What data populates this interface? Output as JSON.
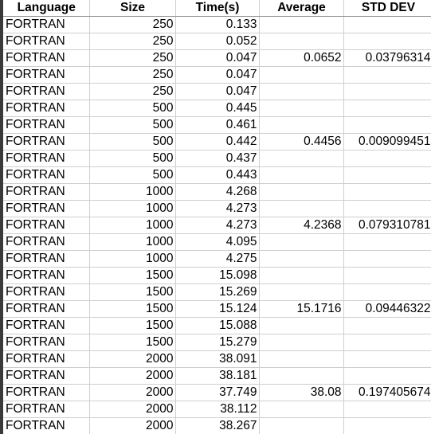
{
  "columns": [
    "Language",
    "Size",
    "Time(s)",
    "Average",
    "STD DEV"
  ],
  "rows": [
    {
      "language": "FORTRAN",
      "size": "250",
      "time": "0.133",
      "average": "",
      "std": ""
    },
    {
      "language": "FORTRAN",
      "size": "250",
      "time": "0.052",
      "average": "",
      "std": ""
    },
    {
      "language": "FORTRAN",
      "size": "250",
      "time": "0.047",
      "average": "0.0652",
      "std": "0.03796314"
    },
    {
      "language": "FORTRAN",
      "size": "250",
      "time": "0.047",
      "average": "",
      "std": ""
    },
    {
      "language": "FORTRAN",
      "size": "250",
      "time": "0.047",
      "average": "",
      "std": ""
    },
    {
      "language": "FORTRAN",
      "size": "500",
      "time": "0.445",
      "average": "",
      "std": ""
    },
    {
      "language": "FORTRAN",
      "size": "500",
      "time": "0.461",
      "average": "",
      "std": ""
    },
    {
      "language": "FORTRAN",
      "size": "500",
      "time": "0.442",
      "average": "0.4456",
      "std": "0.009099451"
    },
    {
      "language": "FORTRAN",
      "size": "500",
      "time": "0.437",
      "average": "",
      "std": ""
    },
    {
      "language": "FORTRAN",
      "size": "500",
      "time": "0.443",
      "average": "",
      "std": ""
    },
    {
      "language": "FORTRAN",
      "size": "1000",
      "time": "4.268",
      "average": "",
      "std": ""
    },
    {
      "language": "FORTRAN",
      "size": "1000",
      "time": "4.273",
      "average": "",
      "std": ""
    },
    {
      "language": "FORTRAN",
      "size": "1000",
      "time": "4.273",
      "average": "4.2368",
      "std": "0.079310781"
    },
    {
      "language": "FORTRAN",
      "size": "1000",
      "time": "4.095",
      "average": "",
      "std": ""
    },
    {
      "language": "FORTRAN",
      "size": "1000",
      "time": "4.275",
      "average": "",
      "std": ""
    },
    {
      "language": "FORTRAN",
      "size": "1500",
      "time": "15.098",
      "average": "",
      "std": ""
    },
    {
      "language": "FORTRAN",
      "size": "1500",
      "time": "15.269",
      "average": "",
      "std": ""
    },
    {
      "language": "FORTRAN",
      "size": "1500",
      "time": "15.124",
      "average": "15.1716",
      "std": "0.09446322"
    },
    {
      "language": "FORTRAN",
      "size": "1500",
      "time": "15.088",
      "average": "",
      "std": ""
    },
    {
      "language": "FORTRAN",
      "size": "1500",
      "time": "15.279",
      "average": "",
      "std": ""
    },
    {
      "language": "FORTRAN",
      "size": "2000",
      "time": "38.091",
      "average": "",
      "std": ""
    },
    {
      "language": "FORTRAN",
      "size": "2000",
      "time": "38.181",
      "average": "",
      "std": ""
    },
    {
      "language": "FORTRAN",
      "size": "2000",
      "time": "37.749",
      "average": "38.08",
      "std": "0.197405674"
    },
    {
      "language": "FORTRAN",
      "size": "2000",
      "time": "38.112",
      "average": "",
      "std": ""
    },
    {
      "language": "FORTRAN",
      "size": "2000",
      "time": "38.267",
      "average": "",
      "std": ""
    }
  ]
}
